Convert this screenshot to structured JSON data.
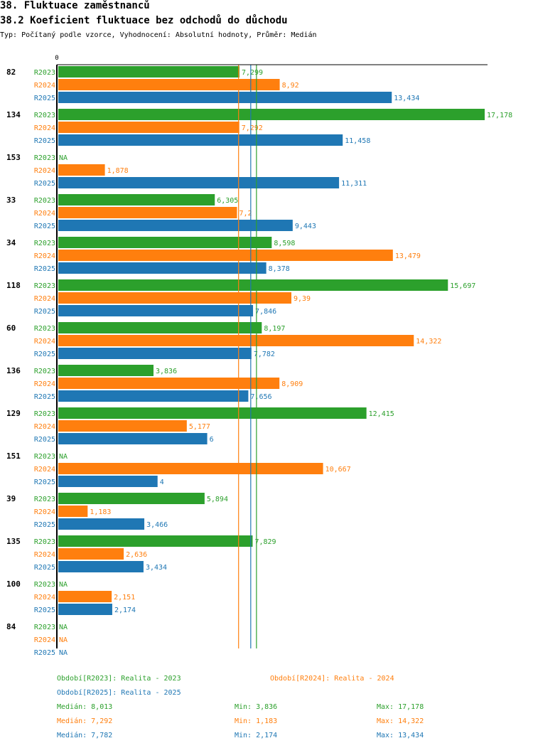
{
  "header": {
    "title": "38. Fluktuace zaměstnanců",
    "subtitle": "38.2 Koeficient fluktuace bez odchodů do důchodu",
    "description": "Typ: Počítaný podle vzorce, Vyhodnocení: Absolutní hodnoty, Průměr: Medián"
  },
  "colors": {
    "R2023": "#2ca02c",
    "R2024": "#ff7f0e",
    "R2025": "#1f77b4"
  },
  "chart_data": {
    "type": "bar",
    "orientation": "horizontal",
    "x_tick_labels": [
      "0"
    ],
    "xlim": [
      0,
      17.33
    ],
    "categories": [
      "82",
      "134",
      "153",
      "33",
      "34",
      "118",
      "60",
      "136",
      "129",
      "151",
      "39",
      "135",
      "100",
      "84"
    ],
    "series": [
      {
        "name": "R2023",
        "values": [
          7.299,
          17.178,
          null,
          6.305,
          8.598,
          15.697,
          8.197,
          3.836,
          12.415,
          null,
          5.894,
          7.829,
          null,
          null
        ],
        "labels": [
          "7,299",
          "17,178",
          "NA",
          "6,305",
          "8,598",
          "15,697",
          "8,197",
          "3,836",
          "12,415",
          "NA",
          "5,894",
          "7,829",
          "NA",
          "NA"
        ]
      },
      {
        "name": "R2024",
        "values": [
          8.92,
          7.292,
          1.878,
          7.2,
          13.479,
          9.39,
          14.322,
          8.909,
          5.177,
          10.667,
          1.183,
          2.636,
          2.151,
          null
        ],
        "labels": [
          "8,92",
          "7,292",
          "1,878",
          "7,2",
          "13,479",
          "9,39",
          "14,322",
          "8,909",
          "5,177",
          "10,667",
          "1,183",
          "2,636",
          "2,151",
          "NA"
        ]
      },
      {
        "name": "R2025",
        "values": [
          13.434,
          11.458,
          11.311,
          9.443,
          8.378,
          7.846,
          7.782,
          7.656,
          6,
          4,
          3.466,
          3.434,
          2.174,
          null
        ],
        "labels": [
          "13,434",
          "11,458",
          "11,311",
          "9,443",
          "8,378",
          "7,846",
          "7,782",
          "7,656",
          "6",
          "4",
          "3,466",
          "3,434",
          "2,174",
          "NA"
        ]
      }
    ],
    "median_lines": [
      {
        "series": "R2024",
        "value": 7.292
      },
      {
        "series": "R2025",
        "value": 7.782
      },
      {
        "series": "R2023",
        "value": 8.013
      }
    ],
    "legend": [
      {
        "series": "R2023",
        "text": "Období[R2023]: Realita - 2023"
      },
      {
        "series": "R2024",
        "text": "Období[R2024]: Realita - 2024"
      },
      {
        "series": "R2025",
        "text": "Období[R2025]: Realita - 2025"
      }
    ],
    "stats": [
      {
        "series": "R2023",
        "median": "Medián: 8,013",
        "min": "Min: 3,836",
        "max": "Max: 17,178"
      },
      {
        "series": "R2024",
        "median": "Medián: 7,292",
        "min": "Min: 1,183",
        "max": "Max: 14,322"
      },
      {
        "series": "R2025",
        "median": "Medián: 7,782",
        "min": "Min: 2,174",
        "max": "Max: 13,434"
      }
    ]
  }
}
